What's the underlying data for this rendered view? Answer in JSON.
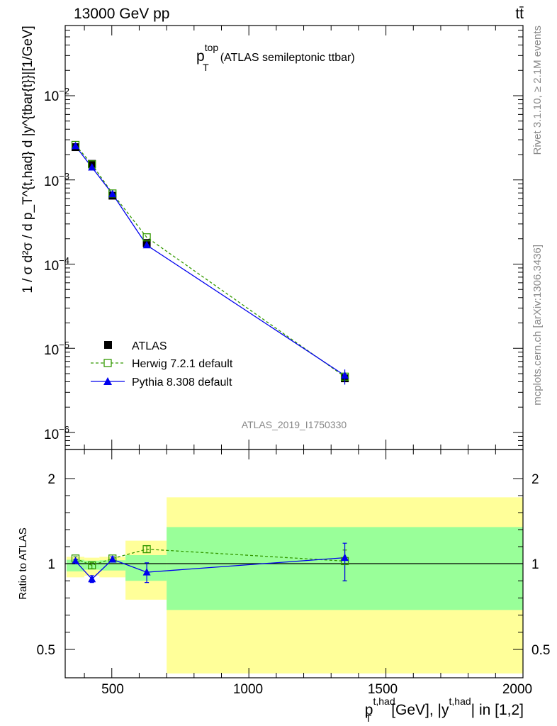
{
  "header": {
    "left": "13000 GeV pp",
    "right": "tt̄"
  },
  "side": {
    "rivet": "Rivet 3.1.10, ≥ 2.1M events",
    "mcplots": "mcplots.cern.ch [arXiv:1306.3436]"
  },
  "chart_data": [
    {
      "type": "line",
      "panel": "main",
      "title": {
        "main": "p",
        "sup": "top",
        "sub": "T",
        "rest": "(ATLAS semileptonic ttbar)"
      },
      "watermark": "ATLAS_2019_I1750330",
      "ylabel": "1 / σ d²σ / d p_T^{t,had} d |y^{tbar{t}}|[1/GeV]",
      "yscale": "log",
      "ylim": [
        5e-07,
        0.1
      ],
      "xlim": [
        330,
        2000
      ],
      "ytick_labels": {
        "y1": {
          "base": "10",
          "exp": "−2"
        },
        "y2": {
          "base": "10",
          "exp": "−3"
        },
        "y3": {
          "base": "10",
          "exp": "−4"
        },
        "y4": {
          "base": "10",
          "exp": "−5"
        },
        "y5": {
          "base": "10",
          "exp": "−6"
        }
      },
      "legend": {
        "atlas": "ATLAS",
        "herwig": "Herwig 7.2.1 default",
        "pythia": "Pythia 8.308 default",
        "position": "bottom-left"
      },
      "x": [
        367.5,
        427.5,
        502.5,
        627.5,
        1350
      ],
      "bins": [
        [
          335,
          400
        ],
        [
          400,
          455
        ],
        [
          455,
          550
        ],
        [
          550,
          700
        ],
        [
          700,
          2000
        ]
      ],
      "series": [
        {
          "name": "ATLAS",
          "color": "#000000",
          "marker": "square-filled",
          "values": [
            0.00245,
            0.00155,
            0.00065,
            0.000178,
            4.4e-06
          ]
        },
        {
          "name": "Herwig 7.2.1 default",
          "color": "#339900",
          "marker": "square-open",
          "line": "dashed",
          "values": [
            0.0026,
            0.00153,
            0.00069,
            0.000208,
            4.6e-06
          ]
        },
        {
          "name": "Pythia 8.308 default",
          "color": "#0000ee",
          "marker": "triangle-filled",
          "line": "solid",
          "values": [
            0.00253,
            0.00141,
            0.00068,
            0.000168,
            4.75e-06
          ]
        }
      ]
    },
    {
      "type": "line",
      "panel": "ratio",
      "ylabel": "Ratio to ATLAS",
      "ylim": [
        0.4,
        2.25
      ],
      "ytick_labels": {
        "y1": "0.5",
        "y2": "1",
        "y3": "2"
      },
      "xlim": [
        330,
        2000
      ],
      "xtick_labels": {
        "t1": "500",
        "t2": "1000",
        "t3": "1500",
        "t4": "2000"
      },
      "xlabel": {
        "p": "p",
        "sup1": "t,had",
        "sub": "T",
        "mid": "[GeV], |y",
        "sup2": "t,had",
        "end": "| in [1,2]"
      },
      "x": [
        367.5,
        427.5,
        502.5,
        627.5,
        1350
      ],
      "bands": {
        "stat_color": "#99ff99",
        "total_color": "#ffff99",
        "stat": [
          [
            0.955,
            1.045
          ],
          [
            0.965,
            1.035
          ],
          [
            0.96,
            1.04
          ],
          [
            0.9,
            1.1
          ],
          [
            0.73,
            1.43
          ]
        ],
        "total": [
          [
            0.92,
            1.08
          ],
          [
            0.93,
            1.07
          ],
          [
            0.92,
            1.08
          ],
          [
            0.79,
            1.27
          ],
          [
            0.36,
            1.78
          ]
        ]
      },
      "series": [
        {
          "name": "Herwig 7.2.1 default",
          "color": "#339900",
          "marker": "square-open",
          "line": "dashed",
          "values": [
            1.06,
            0.99,
            1.06,
            1.17,
            1.03
          ],
          "errors": [
            0.02,
            0.02,
            0.02,
            0.04,
            0.13
          ]
        },
        {
          "name": "Pythia 8.308 default",
          "color": "#0000ee",
          "marker": "triangle-filled",
          "line": "solid",
          "values": [
            1.03,
            0.91,
            1.05,
            0.95,
            1.07
          ],
          "errors": [
            0.02,
            0.02,
            0.03,
            0.06,
            0.17
          ]
        }
      ]
    }
  ]
}
